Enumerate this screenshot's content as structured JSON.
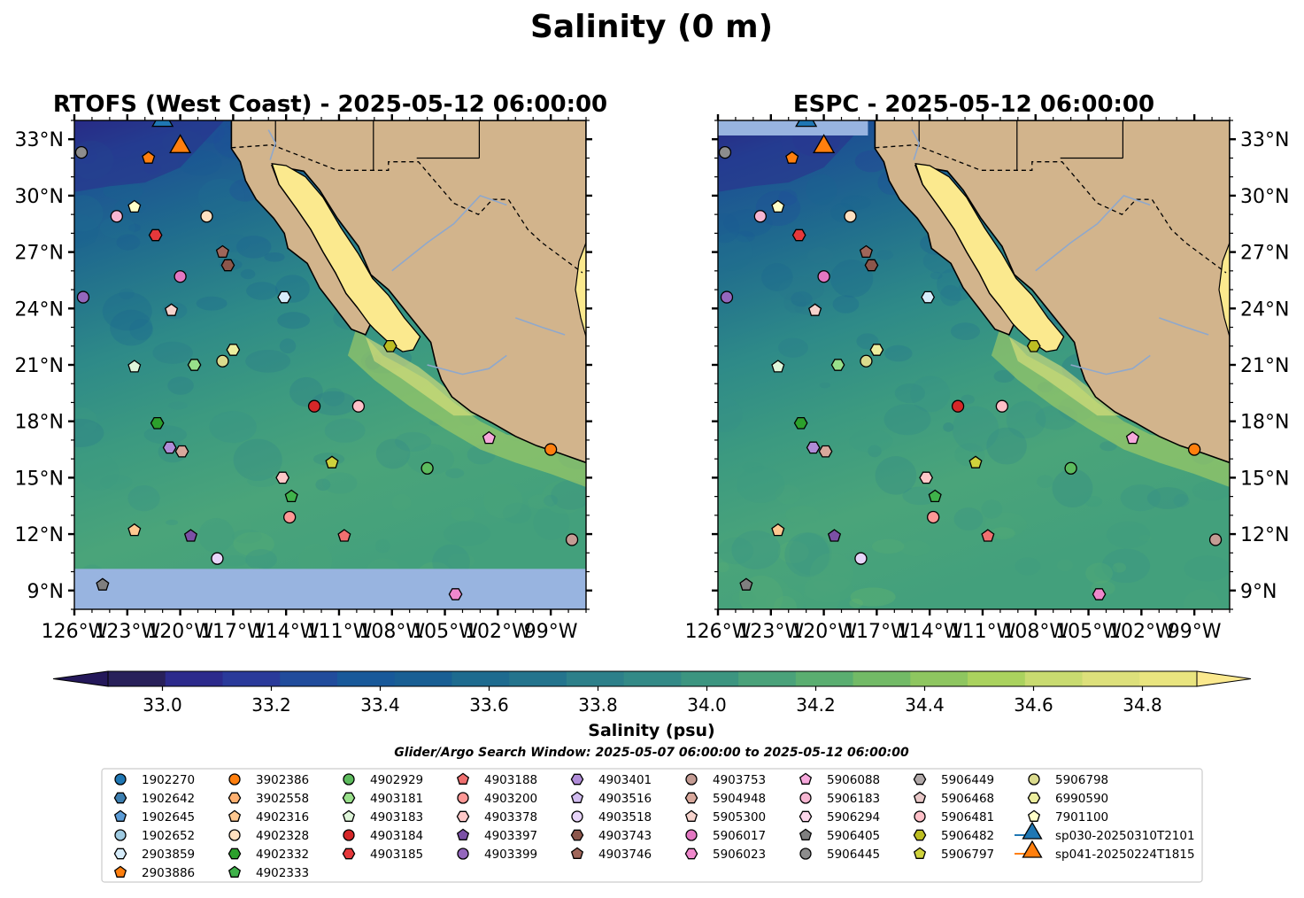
{
  "suptitle": "Salinity (0 m)",
  "panels": [
    {
      "title": "RTOFS (West Coast) - 2025-05-12 06:00:00",
      "masked_south": true
    },
    {
      "title": "ESPC - 2025-05-12 06:00:00",
      "masked_south": false
    }
  ],
  "axes": {
    "lon_ticks": [
      "126°W",
      "123°W",
      "120°W",
      "117°W",
      "114°W",
      "111°W",
      "108°W",
      "105°W",
      "102°W",
      "99°W"
    ],
    "lat_ticks": [
      "33°N",
      "30°N",
      "27°N",
      "24°N",
      "21°N",
      "18°N",
      "15°N",
      "12°N",
      "9°N"
    ],
    "lon_range": [
      -126,
      -97
    ],
    "lat_range": [
      8,
      34
    ]
  },
  "colorbar": {
    "label": "Salinity (psu)",
    "ticks": [
      "33.0",
      "33.2",
      "33.4",
      "33.6",
      "33.8",
      "34.0",
      "34.2",
      "34.4",
      "34.6",
      "34.8"
    ],
    "min": 32.9,
    "max": 34.9
  },
  "search_window": "Glider/Argo Search Window: 2025-05-07 06:00:00 to 2025-05-12 06:00:00",
  "colors": {
    "land": "#d2b48c",
    "gulf": "#fbe98e",
    "masked": "#98b4e0",
    "coast": "#000000"
  },
  "chart_data": {
    "type": "heatmap",
    "variable": "Sea surface salinity (psu)",
    "depth": "0 m",
    "floats": [
      {
        "id": "1902270",
        "marker": "circle",
        "color": "#1f77b4"
      },
      {
        "id": "1902642",
        "marker": "hexagon",
        "color": "#3d7fb0"
      },
      {
        "id": "1902645",
        "marker": "pentagon",
        "color": "#5b9bd5"
      },
      {
        "id": "1902652",
        "marker": "circle",
        "color": "#9ecae1"
      },
      {
        "id": "2903859",
        "marker": "hexagon",
        "color": "#d6ecfa",
        "lon": -114.1,
        "lat": 24.6
      },
      {
        "id": "2903886",
        "marker": "pentagon",
        "color": "#ff7f0e",
        "lon": -121.8,
        "lat": 32.0
      },
      {
        "id": "3902386",
        "marker": "circle",
        "color": "#ff7f0e",
        "lon": -99.0,
        "lat": 16.5
      },
      {
        "id": "3902558",
        "marker": "hexagon",
        "color": "#ffb070"
      },
      {
        "id": "4902316",
        "marker": "pentagon",
        "color": "#ffc890",
        "lon": -122.6,
        "lat": 12.2
      },
      {
        "id": "4902328",
        "marker": "circle",
        "color": "#ffe0c0",
        "lon": -118.5,
        "lat": 28.9
      },
      {
        "id": "4902332",
        "marker": "hexagon",
        "color": "#2ca02c",
        "lon": -121.3,
        "lat": 17.9
      },
      {
        "id": "4902333",
        "marker": "pentagon",
        "color": "#3fb24a",
        "lon": -113.7,
        "lat": 14.0
      },
      {
        "id": "4902929",
        "marker": "circle",
        "color": "#5dbb5d",
        "lon": -106.0,
        "lat": 15.5
      },
      {
        "id": "4903181",
        "marker": "hexagon",
        "color": "#98df8a",
        "lon": -119.2,
        "lat": 21.0
      },
      {
        "id": "4903183",
        "marker": "pentagon",
        "color": "#dff6da",
        "lon": -122.6,
        "lat": 20.9
      },
      {
        "id": "4903184",
        "marker": "circle",
        "color": "#d62728",
        "lon": -112.4,
        "lat": 18.8
      },
      {
        "id": "4903185",
        "marker": "hexagon",
        "color": "#e5383b",
        "lon": -121.4,
        "lat": 27.9
      },
      {
        "id": "4903188",
        "marker": "pentagon",
        "color": "#f07070",
        "lon": -110.7,
        "lat": 11.9
      },
      {
        "id": "4903200",
        "marker": "circle",
        "color": "#ff9896",
        "lon": -113.8,
        "lat": 12.9
      },
      {
        "id": "4903378",
        "marker": "hexagon",
        "color": "#ffc8c8",
        "lon": -114.2,
        "lat": 15.0
      },
      {
        "id": "4903397",
        "marker": "pentagon",
        "color": "#7b50a5",
        "lon": -119.4,
        "lat": 11.9
      },
      {
        "id": "4903399",
        "marker": "circle",
        "color": "#9467bd",
        "lon": -125.5,
        "lat": 24.6
      },
      {
        "id": "4903401",
        "marker": "hexagon",
        "color": "#b08cd8",
        "lon": -120.6,
        "lat": 16.6
      },
      {
        "id": "4903516",
        "marker": "pentagon",
        "color": "#d2bdf0"
      },
      {
        "id": "4903518",
        "marker": "circle",
        "color": "#e8d5fa",
        "lon": -117.9,
        "lat": 10.7
      },
      {
        "id": "4903743",
        "marker": "hexagon",
        "color": "#8c564b",
        "lon": -117.3,
        "lat": 26.3
      },
      {
        "id": "4903746",
        "marker": "pentagon",
        "color": "#a0665a",
        "lon": -117.6,
        "lat": 27.0
      },
      {
        "id": "4903753",
        "marker": "circle",
        "color": "#c49c94",
        "lon": -97.8,
        "lat": 11.7
      },
      {
        "id": "5904948",
        "marker": "hexagon",
        "color": "#d8a89c",
        "lon": -119.9,
        "lat": 16.4
      },
      {
        "id": "5905300",
        "marker": "pentagon",
        "color": "#f6d3cc",
        "lon": -120.5,
        "lat": 23.9
      },
      {
        "id": "5906017",
        "marker": "circle",
        "color": "#e377c2",
        "lon": -120.0,
        "lat": 25.7
      },
      {
        "id": "5906023",
        "marker": "hexagon",
        "color": "#ef88cc",
        "lon": -104.4,
        "lat": 8.8
      },
      {
        "id": "5906088",
        "marker": "pentagon",
        "color": "#f7a8dc",
        "lon": -102.5,
        "lat": 17.1
      },
      {
        "id": "5906183",
        "marker": "circle",
        "color": "#f7b6d2",
        "lon": -123.6,
        "lat": 28.9
      },
      {
        "id": "5906294",
        "marker": "hexagon",
        "color": "#fbd6ea"
      },
      {
        "id": "5906405",
        "marker": "pentagon",
        "color": "#7f7f7f",
        "lon": -124.4,
        "lat": 9.3
      },
      {
        "id": "5906445",
        "marker": "circle",
        "color": "#8d8d8d",
        "lon": -125.6,
        "lat": 32.3
      },
      {
        "id": "5906449",
        "marker": "hexagon",
        "color": "#b0a8a8"
      },
      {
        "id": "5906468",
        "marker": "pentagon",
        "color": "#e8c8c8"
      },
      {
        "id": "5906481",
        "marker": "circle",
        "color": "#ffc0c8",
        "lon": -109.9,
        "lat": 18.8
      },
      {
        "id": "5906482",
        "marker": "hexagon",
        "color": "#bcbd22",
        "lon": -108.1,
        "lat": 22.0
      },
      {
        "id": "5906797",
        "marker": "pentagon",
        "color": "#cfd23c",
        "lon": -111.4,
        "lat": 15.8
      },
      {
        "id": "5906798",
        "marker": "circle",
        "color": "#dbdb8d",
        "lon": -117.6,
        "lat": 21.2
      },
      {
        "id": "6990590",
        "marker": "hexagon",
        "color": "#ecee9e",
        "lon": -117.0,
        "lat": 21.8
      },
      {
        "id": "7901100",
        "marker": "pentagon",
        "color": "#ffffc8",
        "lon": -122.6,
        "lat": 29.4
      },
      {
        "id": "sp030-20250310T2101",
        "marker": "triangle",
        "color": "#1f77b4",
        "lon": -121.0,
        "lat": 34.0
      },
      {
        "id": "sp041-20250224T1815",
        "marker": "triangle",
        "color": "#ff7f0e",
        "lon": -120.0,
        "lat": 32.6
      }
    ]
  }
}
